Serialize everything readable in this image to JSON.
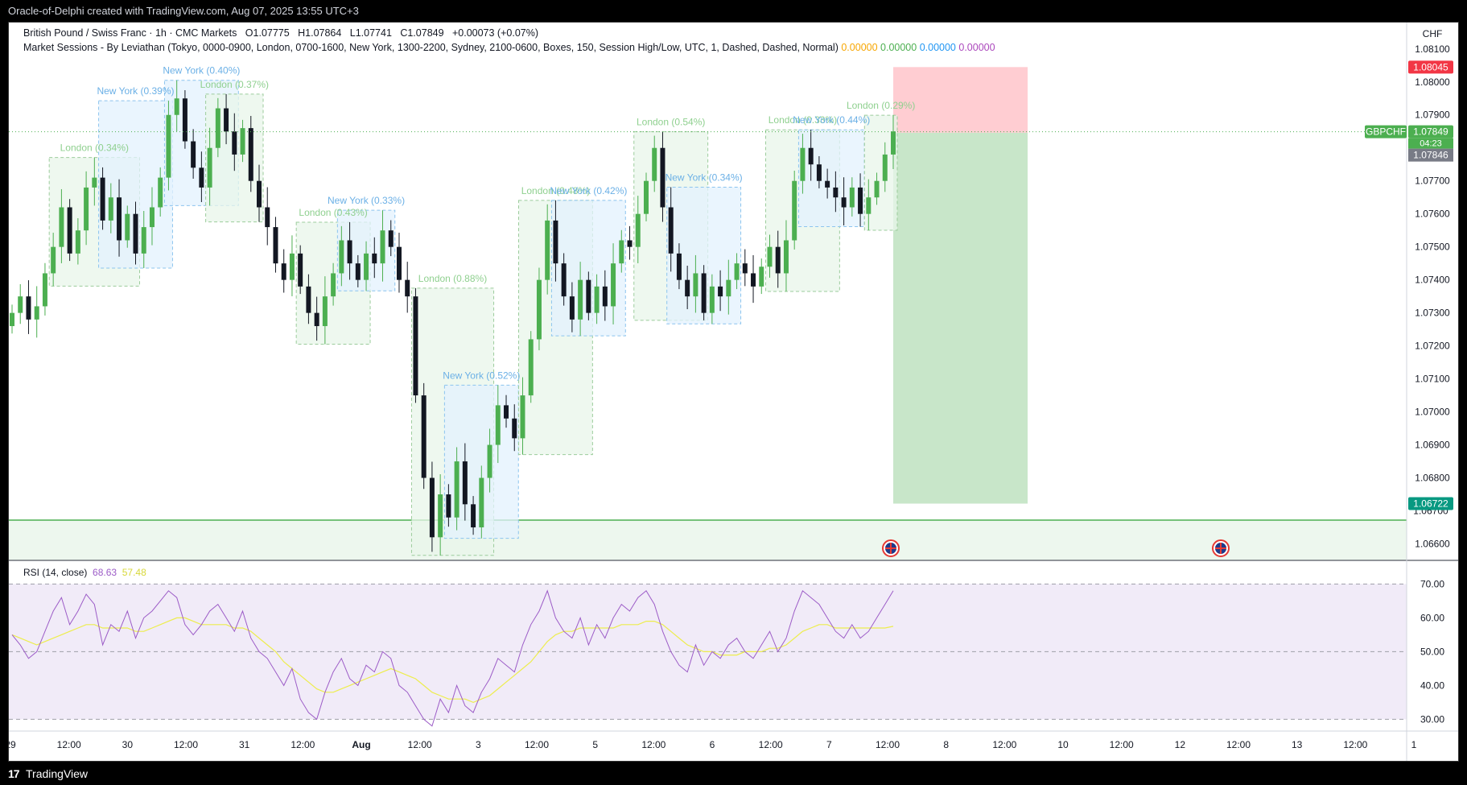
{
  "window": {
    "title": "Oracle-of-Delphi created with TradingView.com, Aug 07, 2025 13:55 UTC+3",
    "footer_brand": "TradingView",
    "footer_logo": "17"
  },
  "legend": {
    "symbol": "British Pound / Swiss Franc · 1h · CMC Markets",
    "o_label": "O",
    "o_value": "1.07775",
    "h_label": "H",
    "h_value": "1.07864",
    "l_label": "L",
    "l_value": "1.07741",
    "c_label": "C",
    "c_value": "1.07849",
    "change": "+0.00073 (+0.07%)",
    "indicator": "Market Sessions - By Leviathan (Tokyo, 0000-0900, London, 0700-1600, New York, 1300-2200, Sydney, 2100-0600, Boxes, 150, Session High/Low, UTC, 1, Dashed, Dashed, Normal)",
    "ind_values": [
      {
        "text": "0.00000",
        "color": "#f7a600"
      },
      {
        "text": "0.00000",
        "color": "#4caf50"
      },
      {
        "text": "0.00000",
        "color": "#2196f3"
      },
      {
        "text": "0.00000",
        "color": "#ab47bc"
      }
    ]
  },
  "currency": "CHF",
  "price_axis": {
    "labels": [
      "1.08100",
      "1.08000",
      "1.07900",
      "1.07700",
      "1.07600",
      "1.07500",
      "1.07400",
      "1.07300",
      "1.07200",
      "1.07100",
      "1.07000",
      "1.06900",
      "1.06800",
      "1.06600"
    ],
    "values": [
      1.081,
      1.08,
      1.079,
      1.077,
      1.076,
      1.075,
      1.074,
      1.073,
      1.072,
      1.071,
      1.07,
      1.069,
      1.068,
      1.066
    ],
    "stop_label": "1.08045",
    "symbol_tag": "GBPCHF",
    "last_price": "1.07849",
    "countdown": "04:23",
    "entry_label": "1.07846",
    "target_label": "1.06722",
    "hidden_label": "1.06700"
  },
  "time_axis": {
    "labels": [
      "29",
      "12:00",
      "30",
      "12:00",
      "31",
      "12:00",
      "Aug",
      "12:00",
      "3",
      "12:00",
      "5",
      "12:00",
      "6",
      "12:00",
      "7",
      "12:00",
      "8",
      "12:00",
      "10",
      "12:00",
      "12",
      "12:00",
      "13",
      "12:00",
      "1"
    ]
  },
  "rsi": {
    "label": "RSI (14, close)",
    "rsi_value": "68.63",
    "ma_value": "57.48",
    "axis_labels": [
      "70.00",
      "60.00",
      "50.00",
      "40.00",
      "30.00"
    ],
    "axis_values": [
      70,
      60,
      50,
      40,
      30
    ],
    "rsi_color": "#9c5cc7",
    "ma_color": "#eded4d"
  },
  "sessions": [
    {
      "label": "London  (0.34%)",
      "kind": "london"
    },
    {
      "label": "New York  (0.39%)",
      "kind": "ny"
    },
    {
      "label": "New York  (0.40%)",
      "kind": "ny"
    },
    {
      "label": "London  (0.37%)",
      "kind": "london"
    },
    {
      "label": "London  (0.43%)",
      "kind": "london"
    },
    {
      "label": "New York  (0.33%)",
      "kind": "ny"
    },
    {
      "label": "London  (0.88%)",
      "kind": "london"
    },
    {
      "label": "New York  (0.52%)",
      "kind": "ny"
    },
    {
      "label": "London  (0.48%)",
      "kind": "london"
    },
    {
      "label": "New York  (0.42%)",
      "kind": "ny"
    },
    {
      "label": "London  (0.54%)",
      "kind": "london"
    },
    {
      "label": "New York  (0.34%)",
      "kind": "ny"
    },
    {
      "label": "London  (0.33%)",
      "kind": "london"
    },
    {
      "label": "New York  (0.44%)",
      "kind": "ny"
    },
    {
      "label": "London  (0.29%)",
      "kind": "london"
    }
  ],
  "colors": {
    "up": "#4caf50",
    "down": "#131722",
    "london_box": "#e8f5e9",
    "ny_box": "#e3f2fd",
    "stop_zone": "#ffcdd2",
    "target_zone": "#c8e6c9",
    "support_line": "#4caf50",
    "rsi_bg": "#f1ebf8"
  },
  "chart_data": {
    "type": "candlestick",
    "symbol": "GBPCHF",
    "timeframe": "1h",
    "last": {
      "open": 1.07775,
      "high": 1.07864,
      "low": 1.07741,
      "close": 1.07849
    },
    "ylim": [
      1.0655,
      1.0818
    ],
    "close_path": [
      1.073,
      1.0735,
      1.0728,
      1.0732,
      1.0742,
      1.075,
      1.0762,
      1.0748,
      1.0755,
      1.0768,
      1.0771,
      1.0758,
      1.0765,
      1.0752,
      1.076,
      1.0748,
      1.0756,
      1.0762,
      1.0771,
      1.079,
      1.0795,
      1.0782,
      1.0774,
      1.0768,
      1.078,
      1.0792,
      1.0785,
      1.0778,
      1.0786,
      1.077,
      1.0762,
      1.0756,
      1.0745,
      1.074,
      1.0748,
      1.0738,
      1.073,
      1.0726,
      1.0735,
      1.0742,
      1.0752,
      1.0745,
      1.074,
      1.0748,
      1.0745,
      1.0755,
      1.075,
      1.074,
      1.0735,
      1.0705,
      1.068,
      1.0662,
      1.0675,
      1.0668,
      1.0685,
      1.0672,
      1.0665,
      1.068,
      1.069,
      1.0702,
      1.0698,
      1.0692,
      1.0705,
      1.0722,
      1.074,
      1.0758,
      1.0745,
      1.0735,
      1.0728,
      1.074,
      1.073,
      1.0738,
      1.0732,
      1.0745,
      1.0752,
      1.075,
      1.076,
      1.077,
      1.078,
      1.0762,
      1.0748,
      1.074,
      1.0735,
      1.0742,
      1.073,
      1.0738,
      1.0735,
      1.074,
      1.0745,
      1.0742,
      1.0738,
      1.0744,
      1.075,
      1.0742,
      1.0752,
      1.077,
      1.078,
      1.0775,
      1.077,
      1.0768,
      1.0765,
      1.0762,
      1.0768,
      1.076,
      1.0765,
      1.077,
      1.0778,
      1.0785
    ],
    "rsi": [
      55,
      52,
      48,
      50,
      56,
      62,
      66,
      58,
      62,
      67,
      64,
      52,
      58,
      56,
      62,
      54,
      60,
      62,
      65,
      68,
      66,
      58,
      55,
      58,
      62,
      64,
      60,
      56,
      62,
      54,
      50,
      48,
      44,
      40,
      45,
      36,
      32,
      30,
      38,
      44,
      48,
      42,
      40,
      46,
      44,
      50,
      48,
      40,
      38,
      34,
      30,
      28,
      36,
      32,
      40,
      34,
      32,
      38,
      42,
      48,
      46,
      44,
      52,
      58,
      62,
      68,
      60,
      56,
      54,
      60,
      52,
      58,
      54,
      60,
      64,
      62,
      66,
      68,
      64,
      56,
      50,
      46,
      44,
      52,
      46,
      50,
      48,
      52,
      54,
      50,
      48,
      52,
      56,
      50,
      54,
      62,
      68,
      66,
      64,
      60,
      56,
      54,
      58,
      54,
      56,
      60,
      64,
      68
    ],
    "rsi_ma": [
      55,
      54,
      53,
      52,
      53,
      54,
      55,
      56,
      57,
      58,
      58,
      57,
      57,
      57,
      57,
      56,
      56,
      57,
      58,
      59,
      60,
      60,
      59,
      58,
      58,
      58,
      58,
      57,
      57,
      56,
      54,
      52,
      50,
      47,
      45,
      43,
      41,
      39,
      38,
      38,
      39,
      40,
      41,
      42,
      43,
      44,
      45,
      44,
      43,
      42,
      40,
      38,
      37,
      36,
      36,
      36,
      35,
      36,
      37,
      39,
      41,
      43,
      45,
      47,
      50,
      53,
      55,
      56,
      56,
      57,
      57,
      57,
      57,
      57,
      58,
      58,
      58,
      59,
      59,
      58,
      56,
      54,
      52,
      51,
      50,
      50,
      49,
      49,
      49,
      50,
      50,
      50,
      51,
      51,
      52,
      54,
      56,
      57,
      58,
      58,
      57,
      57,
      57,
      57,
      57,
      57,
      57,
      57.5
    ]
  }
}
